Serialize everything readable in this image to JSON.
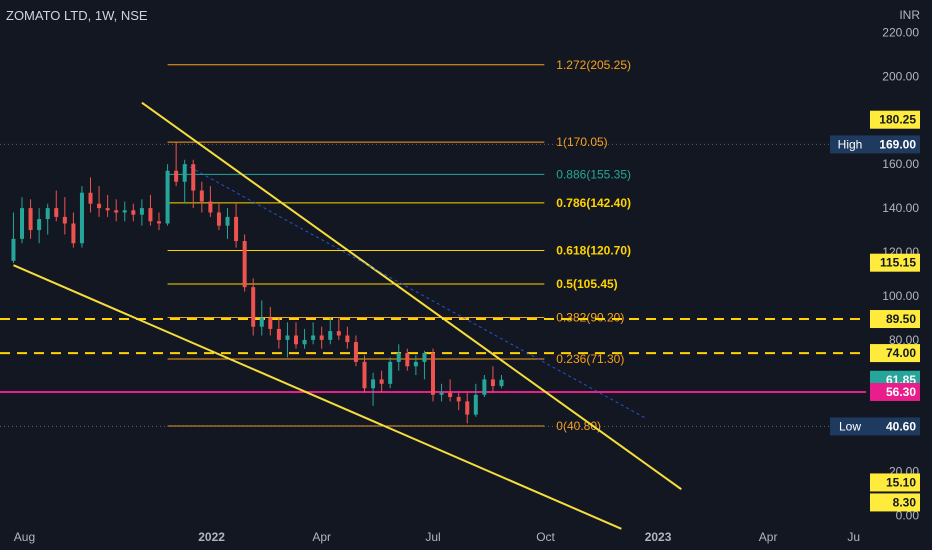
{
  "header": {
    "title": "ZOMATO LTD, 1W, NSE",
    "currency": "INR"
  },
  "colors": {
    "background": "#131722",
    "up": "#26a69a",
    "down": "#ef5350",
    "fib": "#f7a21b",
    "fib_teal": "#26a69a",
    "fib_yellow": "#ffd400",
    "trend": "#f5dd3c",
    "magenta": "#e91e8c",
    "axis_text": "#b2b5be"
  },
  "chart_data": {
    "type": "candlestick",
    "title": "ZOMATO LTD, 1W, NSE",
    "ylabel": "INR",
    "ylim": [
      -2,
      222
    ],
    "xlim": [
      "2021-07-12",
      "2023-06-20"
    ],
    "grid": false,
    "y_ticks": [
      "220.00",
      "200.00",
      "180.00",
      "160.00",
      "140.00",
      "120.00",
      "100.00",
      "80.00",
      "60.00",
      "40.00",
      "20.00",
      "0.00"
    ],
    "x_ticks": [
      {
        "date": "2021-08-01",
        "label": "Aug"
      },
      {
        "date": "2022-01-01",
        "label": "2022"
      },
      {
        "date": "2022-04-01",
        "label": "Apr"
      },
      {
        "date": "2022-07-01",
        "label": "Jul"
      },
      {
        "date": "2022-10-01",
        "label": "Oct"
      },
      {
        "date": "2023-01-01",
        "label": "2023"
      },
      {
        "date": "2023-04-01",
        "label": "Apr"
      },
      {
        "date": "2023-06-10",
        "label": "Ju"
      }
    ],
    "candles": [
      {
        "date": "2021-07-23",
        "o": 116,
        "h": 138,
        "l": 115,
        "c": 126
      },
      {
        "date": "2021-07-30",
        "o": 126,
        "h": 145,
        "l": 124,
        "c": 140
      },
      {
        "date": "2021-08-06",
        "o": 140,
        "h": 144,
        "l": 126,
        "c": 130
      },
      {
        "date": "2021-08-13",
        "o": 130,
        "h": 140,
        "l": 124,
        "c": 135
      },
      {
        "date": "2021-08-20",
        "o": 135,
        "h": 142,
        "l": 128,
        "c": 140
      },
      {
        "date": "2021-08-27",
        "o": 140,
        "h": 148,
        "l": 134,
        "c": 136
      },
      {
        "date": "2021-09-03",
        "o": 136,
        "h": 145,
        "l": 128,
        "c": 133
      },
      {
        "date": "2021-09-10",
        "o": 133,
        "h": 138,
        "l": 122,
        "c": 124
      },
      {
        "date": "2021-09-17",
        "o": 124,
        "h": 150,
        "l": 122,
        "c": 147
      },
      {
        "date": "2021-09-24",
        "o": 147,
        "h": 154,
        "l": 138,
        "c": 142
      },
      {
        "date": "2021-10-01",
        "o": 142,
        "h": 150,
        "l": 136,
        "c": 140
      },
      {
        "date": "2021-10-08",
        "o": 140,
        "h": 146,
        "l": 136,
        "c": 139
      },
      {
        "date": "2021-10-15",
        "o": 139,
        "h": 144,
        "l": 134,
        "c": 138
      },
      {
        "date": "2021-10-22",
        "o": 138,
        "h": 143,
        "l": 134,
        "c": 139
      },
      {
        "date": "2021-10-29",
        "o": 139,
        "h": 142,
        "l": 134,
        "c": 137
      },
      {
        "date": "2021-11-05",
        "o": 137,
        "h": 144,
        "l": 132,
        "c": 140
      },
      {
        "date": "2021-11-12",
        "o": 140,
        "h": 146,
        "l": 132,
        "c": 134
      },
      {
        "date": "2021-11-19",
        "o": 134,
        "h": 138,
        "l": 130,
        "c": 133
      },
      {
        "date": "2021-11-26",
        "o": 133,
        "h": 160,
        "l": 132,
        "c": 157
      },
      {
        "date": "2021-12-03",
        "o": 157,
        "h": 170,
        "l": 150,
        "c": 152
      },
      {
        "date": "2021-12-10",
        "o": 152,
        "h": 162,
        "l": 142,
        "c": 160
      },
      {
        "date": "2021-12-17",
        "o": 160,
        "h": 162,
        "l": 140,
        "c": 148
      },
      {
        "date": "2021-12-24",
        "o": 148,
        "h": 152,
        "l": 138,
        "c": 143
      },
      {
        "date": "2021-12-31",
        "o": 143,
        "h": 150,
        "l": 136,
        "c": 138
      },
      {
        "date": "2022-01-07",
        "o": 138,
        "h": 142,
        "l": 130,
        "c": 132
      },
      {
        "date": "2022-01-14",
        "o": 132,
        "h": 140,
        "l": 126,
        "c": 136
      },
      {
        "date": "2022-01-21",
        "o": 136,
        "h": 142,
        "l": 122,
        "c": 125
      },
      {
        "date": "2022-01-28",
        "o": 125,
        "h": 128,
        "l": 102,
        "c": 104
      },
      {
        "date": "2022-02-04",
        "o": 104,
        "h": 108,
        "l": 82,
        "c": 86
      },
      {
        "date": "2022-02-11",
        "o": 86,
        "h": 98,
        "l": 82,
        "c": 90
      },
      {
        "date": "2022-02-18",
        "o": 90,
        "h": 95,
        "l": 82,
        "c": 85
      },
      {
        "date": "2022-02-25",
        "o": 85,
        "h": 90,
        "l": 76,
        "c": 80
      },
      {
        "date": "2022-03-04",
        "o": 80,
        "h": 88,
        "l": 72,
        "c": 82
      },
      {
        "date": "2022-03-11",
        "o": 82,
        "h": 88,
        "l": 76,
        "c": 78
      },
      {
        "date": "2022-03-18",
        "o": 78,
        "h": 85,
        "l": 76,
        "c": 80
      },
      {
        "date": "2022-03-25",
        "o": 80,
        "h": 88,
        "l": 78,
        "c": 82
      },
      {
        "date": "2022-04-01",
        "o": 82,
        "h": 86,
        "l": 76,
        "c": 80
      },
      {
        "date": "2022-04-08",
        "o": 80,
        "h": 90,
        "l": 78,
        "c": 84
      },
      {
        "date": "2022-04-15",
        "o": 84,
        "h": 90,
        "l": 80,
        "c": 82
      },
      {
        "date": "2022-04-22",
        "o": 82,
        "h": 86,
        "l": 76,
        "c": 79
      },
      {
        "date": "2022-04-29",
        "o": 79,
        "h": 82,
        "l": 68,
        "c": 70
      },
      {
        "date": "2022-05-06",
        "o": 70,
        "h": 73,
        "l": 56,
        "c": 58
      },
      {
        "date": "2022-05-13",
        "o": 58,
        "h": 65,
        "l": 50,
        "c": 62
      },
      {
        "date": "2022-05-20",
        "o": 62,
        "h": 66,
        "l": 56,
        "c": 60
      },
      {
        "date": "2022-05-27",
        "o": 60,
        "h": 72,
        "l": 58,
        "c": 70
      },
      {
        "date": "2022-06-03",
        "o": 70,
        "h": 78,
        "l": 66,
        "c": 74
      },
      {
        "date": "2022-06-10",
        "o": 74,
        "h": 76,
        "l": 66,
        "c": 68
      },
      {
        "date": "2022-06-17",
        "o": 68,
        "h": 73,
        "l": 64,
        "c": 70
      },
      {
        "date": "2022-06-24",
        "o": 70,
        "h": 75,
        "l": 62,
        "c": 74
      },
      {
        "date": "2022-07-01",
        "o": 74,
        "h": 76,
        "l": 52,
        "c": 55
      },
      {
        "date": "2022-07-08",
        "o": 55,
        "h": 60,
        "l": 52,
        "c": 56
      },
      {
        "date": "2022-07-15",
        "o": 56,
        "h": 62,
        "l": 52,
        "c": 54
      },
      {
        "date": "2022-07-22",
        "o": 54,
        "h": 56,
        "l": 48,
        "c": 52
      },
      {
        "date": "2022-07-29",
        "o": 52,
        "h": 56,
        "l": 42,
        "c": 46
      },
      {
        "date": "2022-08-05",
        "o": 46,
        "h": 60,
        "l": 45,
        "c": 55
      },
      {
        "date": "2022-08-12",
        "o": 55,
        "h": 64,
        "l": 54,
        "c": 62
      },
      {
        "date": "2022-08-19",
        "o": 62,
        "h": 68,
        "l": 56,
        "c": 59
      },
      {
        "date": "2022-08-26",
        "o": 59,
        "h": 64,
        "l": 58,
        "c": 61.85
      }
    ],
    "fib_levels": [
      {
        "label": "1.272(205.25)",
        "value": 205.25,
        "color": "#f7a21b",
        "weight": "normal"
      },
      {
        "label": "1(170.05)",
        "value": 170.05,
        "color": "#f7a21b",
        "weight": "normal"
      },
      {
        "label": "0.886(155.35)",
        "value": 155.35,
        "color": "#26a69a",
        "weight": "normal"
      },
      {
        "label": "0.786(142.40)",
        "value": 142.4,
        "color": "#ffd400",
        "weight": "bold"
      },
      {
        "label": "0.618(120.70)",
        "value": 120.7,
        "color": "#ffd400",
        "weight": "bold"
      },
      {
        "label": "0.5(105.45)",
        "value": 105.45,
        "color": "#ffd400",
        "weight": "bold"
      },
      {
        "label": "0.382(90.20)",
        "value": 90.2,
        "color": "#f7a21b",
        "weight": "normal"
      },
      {
        "label": "0.236(71.30)",
        "value": 71.3,
        "color": "#f7a21b",
        "weight": "normal"
      },
      {
        "label": "0(40.80)",
        "value": 40.8,
        "color": "#f7a21b",
        "weight": "normal"
      }
    ],
    "fib_range": {
      "start": "2021-11-26",
      "end": "2022-09-30"
    },
    "dashed_levels": [
      89.5,
      74.0
    ],
    "magenta_level": 56.3,
    "trendlines": [
      {
        "from": {
          "date": "2021-11-05",
          "value": 188
        },
        "to": {
          "date": "2023-01-20",
          "value": 12
        },
        "style": "solid"
      },
      {
        "from": {
          "date": "2021-07-23",
          "value": 114
        },
        "to": {
          "date": "2022-12-02",
          "value": -6
        },
        "style": "solid"
      },
      {
        "from": {
          "date": "2021-12-10",
          "value": 160
        },
        "to": {
          "date": "2022-12-23",
          "value": 44
        },
        "style": "dashed"
      }
    ],
    "price_labels": [
      {
        "text": "180.25",
        "value": 180.25,
        "style": "yellow"
      },
      {
        "text": "169.00",
        "value": 169,
        "style": "navy",
        "tag": "High"
      },
      {
        "text": "115.15",
        "value": 115.15,
        "style": "yellow"
      },
      {
        "text": "89.50",
        "value": 89.5,
        "style": "yellow"
      },
      {
        "text": "74.00",
        "value": 74,
        "style": "yellow"
      },
      {
        "text": "61.85",
        "value": 61.85,
        "style": "green"
      },
      {
        "text": "56.30",
        "value": 56.3,
        "style": "magenta"
      },
      {
        "text": "40.60",
        "value": 40.6,
        "style": "navy",
        "tag": "Low"
      },
      {
        "text": "15.10",
        "value": 15.1,
        "style": "yellow"
      },
      {
        "text": "8.30",
        "value": 8.3,
        "style": "yellow"
      }
    ]
  }
}
